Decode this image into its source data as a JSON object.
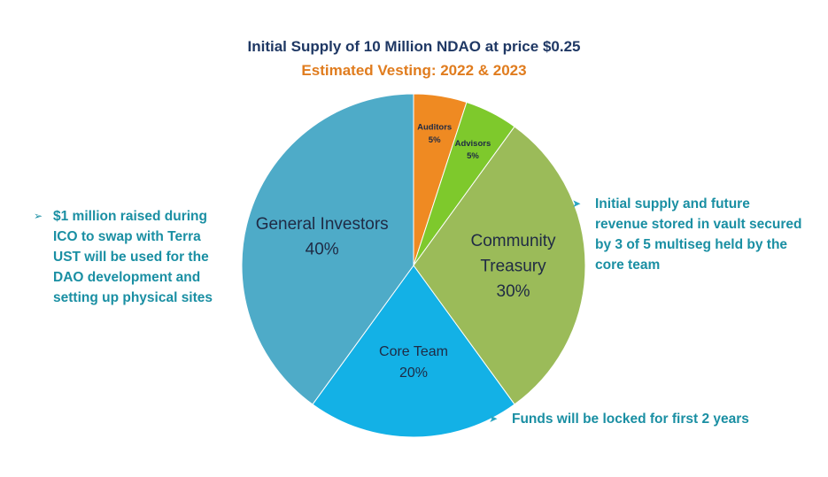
{
  "chart_data": {
    "type": "pie",
    "title": "Initial Supply of 10 Million NDAO at price $0.25",
    "subtitle": "Estimated Vesting: 2022 & 2023",
    "slices": [
      {
        "label": "Auditors",
        "value": 5,
        "display": "5%",
        "color": "#ef8a22",
        "label_lines": [
          "Auditors"
        ]
      },
      {
        "label": "Advisors",
        "value": 5,
        "display": "5%",
        "color": "#7ec92c",
        "label_lines": [
          "Advisors"
        ]
      },
      {
        "label": "Community Treasury",
        "value": 30,
        "display": "30%",
        "color": "#9bbb59",
        "label_lines": [
          "Community",
          "Treasury"
        ]
      },
      {
        "label": "Core Team",
        "value": 20,
        "display": "20%",
        "color": "#13b1e6",
        "label_lines": [
          "Core Team"
        ]
      },
      {
        "label": "General Investors",
        "value": 40,
        "display": "40%",
        "color": "#4eabc8",
        "label_lines": [
          "General Investors"
        ]
      }
    ]
  },
  "annotations": {
    "left": {
      "bullet": "➢",
      "lines": [
        "$1 million raised during",
        "ICO to swap with Terra",
        "UST will be used for the",
        "DAO development and",
        "setting up physical sites"
      ]
    },
    "right": {
      "bullet": "➤",
      "lines": [
        "Initial supply and future",
        "revenue stored in vault secured",
        "by 3 of 5 multiseg held by the",
        "core team"
      ]
    },
    "bottom": {
      "bullet": "➤",
      "text": "Funds will be locked for first 2 years"
    }
  }
}
